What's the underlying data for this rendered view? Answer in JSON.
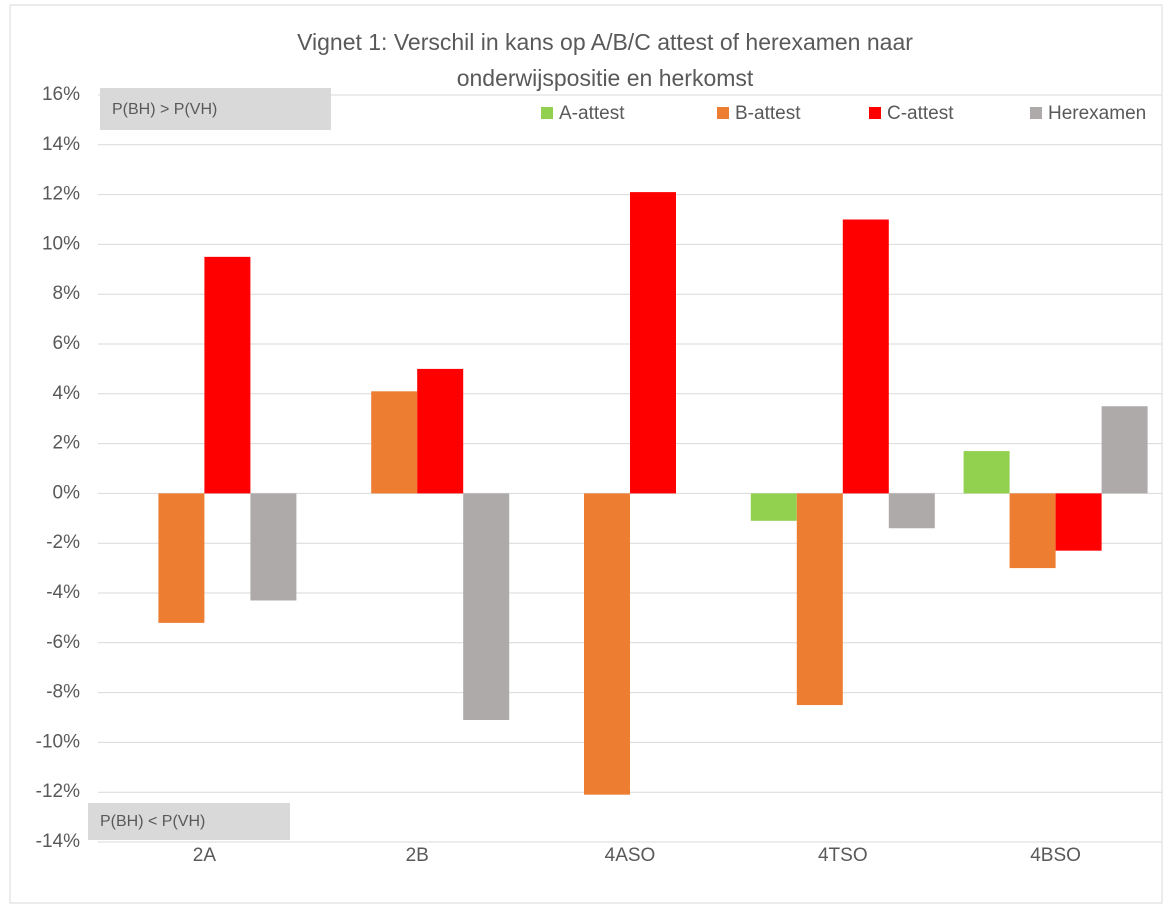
{
  "chart_data": {
    "type": "bar",
    "title": [
      "Vignet 1: Verschil in kans op A/B/C attest of herexamen naar",
      "onderwijspositie en herkomst"
    ],
    "categories": [
      "2A",
      "2B",
      "4ASO",
      "4TSO",
      "4BSO"
    ],
    "series": [
      {
        "name": "A-attest",
        "color": "#92d050",
        "values": [
          null,
          null,
          null,
          -1.1,
          1.7
        ]
      },
      {
        "name": "B-attest",
        "color": "#ed7d31",
        "values": [
          -5.2,
          4.1,
          -12.1,
          -8.5,
          -3.0
        ]
      },
      {
        "name": "C-attest",
        "color": "#ff0000",
        "values": [
          9.5,
          5.0,
          12.1,
          11.0,
          -2.3
        ]
      },
      {
        "name": "Herexamen",
        "color": "#aeaaaa",
        "values": [
          -4.3,
          -9.1,
          null,
          -1.4,
          3.5
        ]
      }
    ],
    "ylim": [
      -14,
      16
    ],
    "yticks": [
      {
        "value": -14,
        "label": "-14%"
      },
      {
        "value": -12,
        "label": "-12%"
      },
      {
        "value": -10,
        "label": "-10%"
      },
      {
        "value": -8,
        "label": "-8%"
      },
      {
        "value": -6,
        "label": "-6%"
      },
      {
        "value": -4,
        "label": "-4%"
      },
      {
        "value": -2,
        "label": "-2%"
      },
      {
        "value": 0,
        "label": "0%"
      },
      {
        "value": 2,
        "label": "2%"
      },
      {
        "value": 4,
        "label": "4%"
      },
      {
        "value": 6,
        "label": "6%"
      },
      {
        "value": 8,
        "label": "8%"
      },
      {
        "value": 10,
        "label": "10%"
      },
      {
        "value": 12,
        "label": "12%"
      },
      {
        "value": 14,
        "label": "14%"
      },
      {
        "value": 16,
        "label": "16%"
      }
    ],
    "grid": true,
    "legend": "top-right",
    "annotations": [
      "P(BH) > P(VH)",
      "P(BH) < P(VH)"
    ]
  }
}
